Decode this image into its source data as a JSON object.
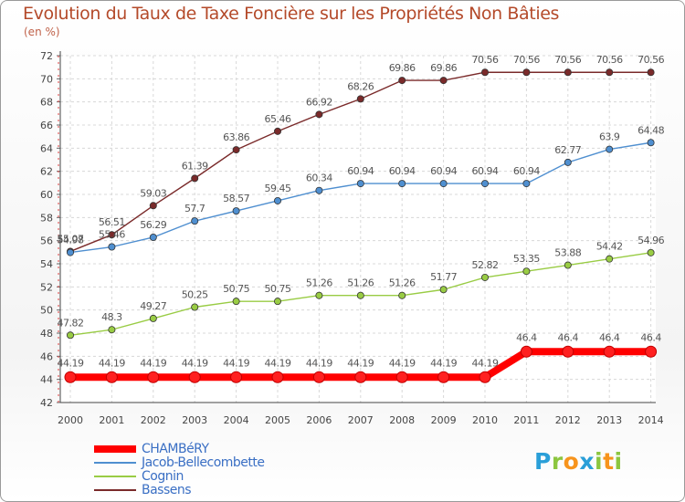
{
  "header": {
    "title": "Evolution du Taux de Taxe Foncière sur les Propriétés Non Bâties",
    "subtitle": "(en %)"
  },
  "brand": {
    "text": "Proxiti",
    "letters": [
      {
        "ch": "P",
        "color": "#2a9fd8"
      },
      {
        "ch": "r",
        "color": "#8cc63f"
      },
      {
        "ch": "o",
        "color": "#f7941d"
      },
      {
        "ch": "x",
        "color": "#2a9fd8"
      },
      {
        "ch": "i",
        "color": "#8cc63f"
      },
      {
        "ch": "t",
        "color": "#f7941d"
      },
      {
        "ch": "i",
        "color": "#8cc63f"
      }
    ]
  },
  "chart_data": {
    "type": "line",
    "title": "Evolution du Taux de Taxe Foncière sur les Propriétés Non Bâties",
    "ylabel": "(en %)",
    "xlabel": "",
    "ylim": [
      42,
      72
    ],
    "yticks": [
      42,
      44,
      46,
      48,
      50,
      52,
      54,
      56,
      58,
      60,
      62,
      64,
      66,
      68,
      70,
      72
    ],
    "x": [
      "2000",
      "2001",
      "2002",
      "2003",
      "2004",
      "2005",
      "2006",
      "2007",
      "2008",
      "2009",
      "2010",
      "2011",
      "2012",
      "2013",
      "2014"
    ],
    "grid": true,
    "legend_position": "bottom-left",
    "series": [
      {
        "name": "CHAMBéRY",
        "color": "#ff0000",
        "values": [
          44.19,
          44.19,
          44.19,
          44.19,
          44.19,
          44.19,
          44.19,
          44.19,
          44.19,
          44.19,
          44.19,
          46.4,
          46.4,
          46.4,
          46.4
        ],
        "labels": [
          "44.19",
          "44.19",
          "44.19",
          "44.19",
          "44.19",
          "44.19",
          "44.19",
          "44.19",
          "44.19",
          "44.19",
          "44.19",
          "46.4",
          "46.4",
          "46.4",
          "46.4"
        ]
      },
      {
        "name": "Jacob-Bellecombette",
        "color": "#4f8fd0",
        "values": [
          54.98,
          55.46,
          56.29,
          57.7,
          58.57,
          59.45,
          60.34,
          60.94,
          60.94,
          60.94,
          60.94,
          60.94,
          62.77,
          63.9,
          64.48
        ],
        "labels": [
          "54.98",
          "55.46",
          "56.29",
          "57.7",
          "58.57",
          "59.45",
          "60.34",
          "60.94",
          "60.94",
          "60.94",
          "60.94",
          "60.94",
          "62.77",
          "63.9",
          "64.48"
        ]
      },
      {
        "name": "Cognin",
        "color": "#99cc44",
        "values": [
          47.82,
          48.3,
          49.27,
          50.25,
          50.75,
          50.75,
          51.26,
          51.26,
          51.26,
          51.77,
          52.82,
          53.35,
          53.88,
          54.42,
          54.96
        ],
        "labels": [
          "47.82",
          "48.3",
          "49.27",
          "50.25",
          "50.75",
          "50.75",
          "51.26",
          "51.26",
          "51.26",
          "51.77",
          "52.82",
          "53.35",
          "53.88",
          "54.42",
          "54.96"
        ]
      },
      {
        "name": "Bassens",
        "color": "#7a2a2a",
        "values": [
          55.07,
          56.51,
          59.03,
          61.39,
          63.86,
          65.46,
          66.92,
          68.26,
          69.86,
          69.86,
          70.56,
          70.56,
          70.56,
          70.56,
          70.56
        ],
        "labels": [
          "55.07",
          "56.51",
          "59.03",
          "61.39",
          "63.86",
          "65.46",
          "66.92",
          "68.26",
          "69.86",
          "69.86",
          "70.56",
          "70.56",
          "70.56",
          "70.56",
          "70.56"
        ]
      }
    ]
  }
}
